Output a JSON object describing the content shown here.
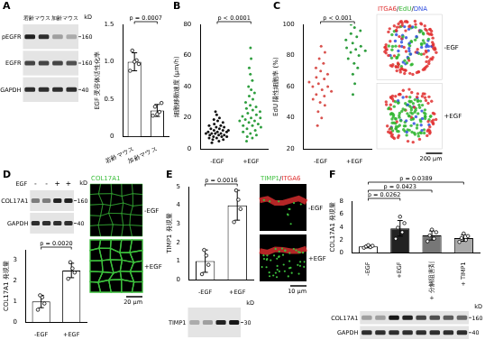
{
  "chart_data": [
    {
      "type": "bar",
      "ylabel": "EGF 受容体活性化率",
      "categories": [
        "若齢マウス",
        "加齢マウス"
      ],
      "values": [
        1.0,
        0.35
      ],
      "errors": [
        0.12,
        0.08
      ],
      "points": [
        [
          0.88,
          1.02,
          1.15,
          0.97,
          1.0
        ],
        [
          0.28,
          0.33,
          0.4,
          0.45,
          0.3
        ]
      ],
      "colors": [
        "#ffffff",
        "#ffffff"
      ],
      "ylim": [
        0,
        1.5
      ],
      "yticks": [
        0,
        0.5,
        {
          "value": 1,
          "label": "1.0"
        },
        1.5
      ],
      "annotations": [
        {
          "text": "p = 0.0007",
          "from": "若齢マウス",
          "to": "加齢マウス"
        }
      ]
    },
    {
      "type": "strip",
      "ylabel": "細胞移動速度 (μm/h)",
      "categories": [
        "-EGF",
        "+EGF"
      ],
      "points": [
        [
          4,
          5,
          6,
          6,
          7,
          7,
          8,
          8,
          8,
          9,
          9,
          9,
          10,
          10,
          10,
          10,
          11,
          11,
          11,
          12,
          12,
          12,
          13,
          13,
          14,
          14,
          15,
          15,
          16,
          17,
          18,
          19,
          20,
          22,
          24
        ],
        [
          5,
          7,
          8,
          9,
          10,
          11,
          12,
          13,
          14,
          15,
          15,
          16,
          17,
          18,
          18,
          19,
          20,
          20,
          21,
          22,
          23,
          24,
          25,
          26,
          27,
          28,
          30,
          32,
          34,
          36,
          38,
          40,
          44,
          48,
          52,
          58,
          65
        ]
      ],
      "colors": [
        "#111111",
        "#2e9e3e"
      ],
      "ylim": [
        0,
        80
      ],
      "yticks": [
        0,
        20,
        40,
        60,
        80
      ],
      "annotations": [
        {
          "text": "p < 0.0001",
          "from": "-EGF",
          "to": "+EGF"
        }
      ]
    },
    {
      "type": "strip",
      "ylabel": "EdU 陽性細胞率 (%)",
      "categories": [
        "-EGF",
        "+EGF"
      ],
      "points": [
        [
          35,
          40,
          44,
          48,
          50,
          52,
          54,
          55,
          57,
          58,
          60,
          60,
          62,
          63,
          65,
          66,
          68,
          70,
          72,
          75,
          78,
          82,
          86
        ],
        [
          55,
          62,
          68,
          72,
          75,
          78,
          80,
          82,
          83,
          84,
          85,
          86,
          88,
          90,
          92,
          94,
          96,
          98,
          100
        ]
      ],
      "colors": [
        "#d9534f",
        "#2e9e3e"
      ],
      "ylim": [
        20,
        100
      ],
      "yticks": [
        20,
        40,
        60,
        80,
        100
      ],
      "annotations": [
        {
          "text": "p < 0.001",
          "from": "-EGF",
          "to": "+EGF"
        }
      ]
    },
    {
      "type": "bar",
      "ylabel": "COL17A1 発現量",
      "categories": [
        "-EGF",
        "+EGF"
      ],
      "values": [
        1.0,
        2.5
      ],
      "errors": [
        0.3,
        0.35
      ],
      "points": [
        [
          0.6,
          0.9,
          1.2,
          1.3
        ],
        [
          2.1,
          2.4,
          2.6,
          2.9
        ]
      ],
      "colors": [
        "#ffffff",
        "#ffffff"
      ],
      "ylim": [
        0,
        3.5
      ],
      "yticks": [
        0,
        1,
        2,
        3
      ],
      "annotations": [
        {
          "text": "p = 0.0020",
          "from": "-EGF",
          "to": "+EGF"
        }
      ]
    },
    {
      "type": "bar",
      "ylabel": "TIMP1 発現量",
      "categories": [
        "-EGF",
        "+EGF"
      ],
      "values": [
        1.0,
        4.0
      ],
      "errors": [
        0.6,
        0.8
      ],
      "points": [
        [
          0.3,
          0.8,
          1.3,
          1.6
        ],
        [
          3.1,
          3.8,
          4.3,
          4.8
        ]
      ],
      "colors": [
        "#ffffff",
        "#ffffff"
      ],
      "ylim": [
        0,
        5
      ],
      "yticks": [
        0,
        1,
        2,
        3,
        4,
        5
      ],
      "annotations": [
        {
          "text": "p = 0.0016",
          "from": "-EGF",
          "to": "+EGF"
        }
      ]
    },
    {
      "type": "bar",
      "ylabel": "COL17A1 発現量",
      "categories": [
        "-EGF",
        "+EGF",
        "+ 分解阻害剤",
        "+ TIMP1"
      ],
      "values": [
        1.0,
        3.8,
        2.7,
        2.3
      ],
      "errors": [
        0.2,
        1.2,
        0.7,
        0.5
      ],
      "points": [
        [
          0.8,
          0.9,
          1.0,
          1.1,
          1.2
        ],
        [
          2.2,
          3.2,
          3.9,
          4.6,
          5.6
        ],
        [
          1.8,
          2.2,
          2.7,
          3.2,
          3.6
        ],
        [
          1.7,
          2.0,
          2.3,
          2.6,
          3.0
        ]
      ],
      "colors": [
        "#ffffff",
        "#222222",
        "#777777",
        "#aaaaaa"
      ],
      "ylim": [
        0,
        8
      ],
      "yticks": [
        0,
        2,
        4,
        6,
        8
      ],
      "annotations": [
        {
          "text": "p = 0.0262",
          "from": "-EGF",
          "to": "+EGF"
        },
        {
          "text": "p = 0.0423",
          "from": "-EGF",
          "to": "+ 分解阻害剤"
        },
        {
          "text": "p = 0.0389",
          "from": "-EGF",
          "to": "+ TIMP1"
        }
      ]
    }
  ],
  "figure": {
    "panels": [
      {
        "label": "A",
        "blot": {
          "unit": "kD",
          "lane_groups": [
            {
              "text": "若齢マウス",
              "lanes": 2
            },
            {
              "text": "加齢マウス",
              "lanes": 2
            }
          ],
          "rows": [
            {
              "name": "pEGFR",
              "marker": 160,
              "bands": [
                0.85,
                0.8,
                0.3,
                0.25
              ]
            },
            {
              "name": "EGFR",
              "marker": 160,
              "bands": [
                0.7,
                0.7,
                0.7,
                0.65
              ]
            },
            {
              "name": "GAPDH",
              "marker": 40,
              "bands": [
                0.8,
                0.8,
                0.8,
                0.8
              ]
            }
          ]
        }
      },
      {
        "label": "B"
      },
      {
        "label": "C",
        "image": {
          "style": "spheroid",
          "label": [
            {
              "text": "ITGA6",
              "color": "#e03030"
            },
            {
              "text": "/",
              "color": "#000000"
            },
            {
              "text": "EdU",
              "color": "#2fb52f"
            },
            {
              "text": "/",
              "color": "#000000"
            },
            {
              "text": "DNA",
              "color": "#3050e0"
            }
          ],
          "rows": [
            "-EGF",
            "+EGF"
          ],
          "scale_bar": "200 μm"
        }
      },
      {
        "label": "D",
        "blot": {
          "unit": "kD",
          "lane_header": {
            "text": "EGF",
            "signs": [
              "-",
              "-",
              "+",
              "+"
            ]
          },
          "rows": [
            {
              "name": "COL17A1",
              "marker": 160,
              "bands": [
                0.45,
                0.45,
                0.85,
                0.85
              ]
            },
            {
              "name": "GAPDH",
              "marker": 40,
              "bands": [
                0.8,
                0.8,
                0.8,
                0.8
              ]
            }
          ]
        },
        "image": {
          "style": "cells",
          "label": [
            {
              "text": "COL17A1",
              "color": "#3cbf3c"
            }
          ],
          "rows": [
            "-EGF",
            "+EGF"
          ],
          "scale_bar": "20 μm"
        }
      },
      {
        "label": "E",
        "blot": {
          "unit": "kD",
          "rows": [
            {
              "name": "TIMP1",
              "marker": 30,
              "bands": [
                0.25,
                0.3,
                0.85,
                0.9
              ]
            }
          ]
        },
        "image": {
          "style": "tissue",
          "label": [
            {
              "text": "TIMP1",
              "color": "#3cbf3c"
            },
            {
              "text": "/",
              "color": "#000000"
            },
            {
              "text": "ITGA6",
              "color": "#e03030"
            }
          ],
          "rows": [
            "-EGF",
            "+EGF"
          ],
          "scale_bar": "10 μm"
        }
      },
      {
        "label": "F",
        "blot": {
          "unit": "kD",
          "rows": [
            {
              "name": "COL17A1",
              "marker": 160,
              "bands": [
                0.3,
                0.3,
                0.9,
                0.85,
                0.7,
                0.65,
                0.6,
                0.55
              ]
            },
            {
              "name": "GAPDH",
              "marker": 40,
              "bands": [
                0.8,
                0.8,
                0.8,
                0.8,
                0.8,
                0.8,
                0.8,
                0.8
              ]
            }
          ]
        }
      }
    ]
  }
}
